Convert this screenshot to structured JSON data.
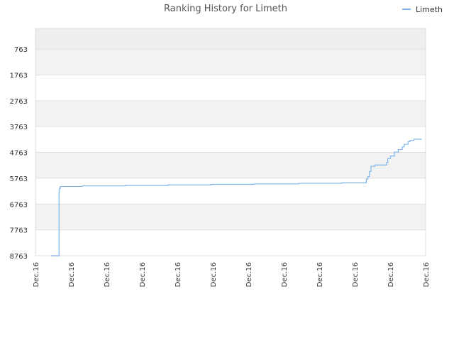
{
  "chart_data": {
    "type": "line",
    "title": "Ranking History for Limeth",
    "xlabel": "",
    "ylabel": "",
    "y_reversed": true,
    "ylim": [
      8763,
      -37
    ],
    "y_ticks": [
      763,
      1763,
      2763,
      3763,
      4763,
      5763,
      6763,
      7763,
      8763
    ],
    "x_tick_labels": [
      "Dec.16",
      "Dec.16",
      "Dec.16",
      "Dec.16",
      "Dec.16",
      "Dec.16",
      "Dec.16",
      "Dec.16",
      "Dec.16",
      "Dec.16",
      "Dec.16",
      "Dec.16"
    ],
    "grid": true,
    "legend_position": "top-right",
    "series": [
      {
        "name": "Limeth",
        "color": "#7cb5ec",
        "x": [
          0.04,
          0.06,
          0.0604,
          0.061,
          0.064,
          0.12,
          0.12,
          0.23,
          0.23,
          0.34,
          0.34,
          0.45,
          0.45,
          0.56,
          0.56,
          0.675,
          0.675,
          0.785,
          0.785,
          0.845,
          0.848,
          0.852,
          0.856,
          0.86,
          0.87,
          0.9,
          0.903,
          0.91,
          0.92,
          0.93,
          0.94,
          0.945,
          0.955,
          0.96,
          0.97,
          0.99
        ],
        "values": [
          8763,
          8763,
          6300,
          6150,
          6080,
          6080,
          6060,
          6060,
          6040,
          6040,
          6020,
          6020,
          6000,
          6000,
          5980,
          5980,
          5960,
          5960,
          5940,
          5940,
          5800,
          5700,
          5500,
          5300,
          5250,
          5150,
          5000,
          4900,
          4750,
          4650,
          4550,
          4450,
          4350,
          4300,
          4250,
          4250
        ]
      }
    ]
  }
}
